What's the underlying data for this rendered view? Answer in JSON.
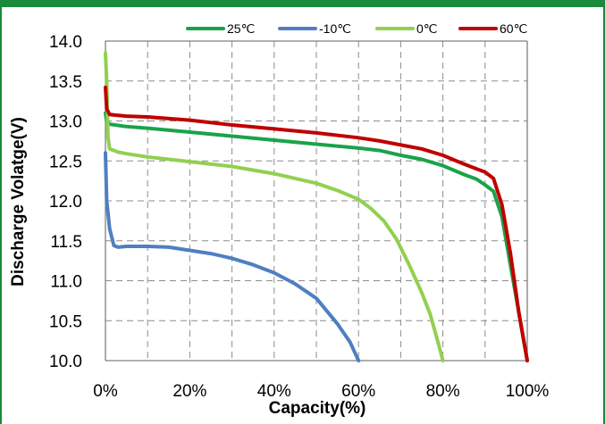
{
  "chart_data": {
    "type": "line",
    "title": "",
    "xlabel": "Capacity(%)",
    "ylabel": "Discharge Volatge(V)",
    "xlim": [
      0,
      100
    ],
    "ylim": [
      10.0,
      14.0
    ],
    "x_ticks": [
      0,
      10,
      20,
      30,
      40,
      50,
      60,
      70,
      80,
      90,
      100
    ],
    "x_tick_labels": [
      "0%",
      "",
      "20%",
      "",
      "40%",
      "",
      "60%",
      "",
      "80%",
      "",
      "100%"
    ],
    "y_ticks": [
      10.0,
      10.5,
      11.0,
      11.5,
      12.0,
      12.5,
      13.0,
      13.5,
      14.0
    ],
    "y_tick_labels": [
      "10.0",
      "10.5",
      "11.0",
      "11.5",
      "12.0",
      "12.5",
      "13.0",
      "13.5",
      "14.0"
    ],
    "grid": true,
    "grid_style": "dashed",
    "legend_position": "top",
    "series": [
      {
        "name": "25℃",
        "color": "#1aa34a",
        "points": [
          [
            0,
            13.1
          ],
          [
            0.3,
            13.0
          ],
          [
            1,
            12.96
          ],
          [
            5,
            12.93
          ],
          [
            10,
            12.91
          ],
          [
            20,
            12.86
          ],
          [
            30,
            12.81
          ],
          [
            40,
            12.76
          ],
          [
            50,
            12.71
          ],
          [
            60,
            12.66
          ],
          [
            65,
            12.63
          ],
          [
            70,
            12.57
          ],
          [
            75,
            12.52
          ],
          [
            80,
            12.44
          ],
          [
            85,
            12.33
          ],
          [
            88,
            12.27
          ],
          [
            90,
            12.2
          ],
          [
            92,
            12.12
          ],
          [
            94,
            11.8
          ],
          [
            96,
            11.2
          ],
          [
            98,
            10.6
          ],
          [
            100,
            10.0
          ]
        ]
      },
      {
        "name": "-10℃",
        "color": "#4f7fc1",
        "points": [
          [
            0,
            12.6
          ],
          [
            0.3,
            12.0
          ],
          [
            1,
            11.65
          ],
          [
            2,
            11.44
          ],
          [
            3,
            11.42
          ],
          [
            5,
            11.43
          ],
          [
            10,
            11.43
          ],
          [
            15,
            11.42
          ],
          [
            20,
            11.38
          ],
          [
            25,
            11.34
          ],
          [
            30,
            11.28
          ],
          [
            35,
            11.2
          ],
          [
            40,
            11.1
          ],
          [
            45,
            10.96
          ],
          [
            50,
            10.78
          ],
          [
            55,
            10.46
          ],
          [
            58,
            10.23
          ],
          [
            60,
            10.0
          ]
        ]
      },
      {
        "name": "0℃",
        "color": "#92d050",
        "points": [
          [
            0,
            13.85
          ],
          [
            0.3,
            13.5
          ],
          [
            0.6,
            12.8
          ],
          [
            1,
            12.65
          ],
          [
            3,
            12.61
          ],
          [
            5,
            12.59
          ],
          [
            10,
            12.55
          ],
          [
            20,
            12.49
          ],
          [
            30,
            12.43
          ],
          [
            40,
            12.34
          ],
          [
            50,
            12.22
          ],
          [
            55,
            12.13
          ],
          [
            60,
            12.02
          ],
          [
            63,
            11.9
          ],
          [
            66,
            11.75
          ],
          [
            69,
            11.52
          ],
          [
            72,
            11.2
          ],
          [
            75,
            10.85
          ],
          [
            77,
            10.58
          ],
          [
            79,
            10.2
          ],
          [
            80,
            10.0
          ]
        ]
      },
      {
        "name": "60℃",
        "color": "#c00000",
        "points": [
          [
            0,
            13.42
          ],
          [
            0.3,
            13.15
          ],
          [
            1,
            13.08
          ],
          [
            5,
            13.06
          ],
          [
            10,
            13.05
          ],
          [
            20,
            13.01
          ],
          [
            30,
            12.95
          ],
          [
            40,
            12.9
          ],
          [
            50,
            12.85
          ],
          [
            60,
            12.79
          ],
          [
            65,
            12.75
          ],
          [
            70,
            12.7
          ],
          [
            75,
            12.65
          ],
          [
            80,
            12.57
          ],
          [
            85,
            12.46
          ],
          [
            88,
            12.4
          ],
          [
            90,
            12.36
          ],
          [
            92,
            12.28
          ],
          [
            94,
            11.95
          ],
          [
            96,
            11.35
          ],
          [
            98,
            10.6
          ],
          [
            99,
            10.3
          ],
          [
            100,
            10.0
          ]
        ]
      }
    ]
  }
}
